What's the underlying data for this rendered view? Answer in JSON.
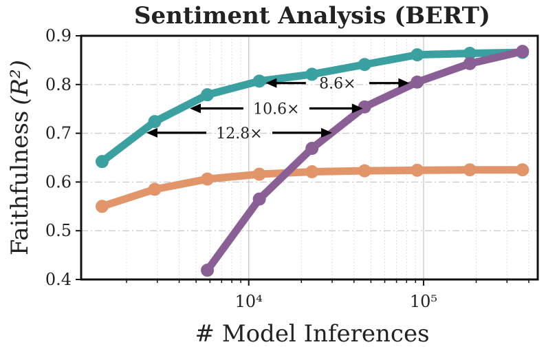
{
  "chart_data": {
    "type": "line",
    "title": "Sentiment Analysis (BERT)",
    "xlabel": "# Model Inferences",
    "ylabel": "Faithfulness",
    "ylabel_math": "(R²)",
    "xscale": "log",
    "xlim": [
      1100,
      450000
    ],
    "ylim": [
      0.4,
      0.9
    ],
    "yticks": [
      0.4,
      0.5,
      0.6,
      0.7,
      0.8,
      0.9
    ],
    "ytick_labels": [
      "0.4",
      "0.5",
      "0.6",
      "0.7",
      "0.8",
      "0.9"
    ],
    "xticks": [
      10000,
      100000
    ],
    "xtick_labels": [
      "10⁴",
      "10⁵"
    ],
    "grid": true,
    "series": [
      {
        "name": "teal",
        "color": "#3aa0a0",
        "x": [
          1450,
          2900,
          5800,
          11500,
          23000,
          46000,
          92000,
          184000,
          368000
        ],
        "y": [
          0.642,
          0.724,
          0.779,
          0.807,
          0.821,
          0.841,
          0.861,
          0.864,
          0.866
        ]
      },
      {
        "name": "orange",
        "color": "#e3956a",
        "x": [
          1450,
          2900,
          5800,
          11500,
          23000,
          46000,
          92000,
          184000,
          368000
        ],
        "y": [
          0.55,
          0.585,
          0.606,
          0.616,
          0.621,
          0.623,
          0.624,
          0.625,
          0.625
        ]
      },
      {
        "name": "purple",
        "color": "#8a5f96",
        "x": [
          5800,
          11500,
          23000,
          46000,
          92000,
          184000,
          368000
        ],
        "y": [
          0.419,
          0.565,
          0.669,
          0.754,
          0.805,
          0.843,
          0.868
        ]
      }
    ],
    "annotations": [
      {
        "text": "8.6×",
        "y": 0.803,
        "x_start": 12500,
        "x_end": 83000
      },
      {
        "text": "10.6×",
        "y": 0.751,
        "x_start": 4600,
        "x_end": 45000
      },
      {
        "text": "12.8×",
        "y": 0.701,
        "x_start": 2600,
        "x_end": 30000
      }
    ]
  }
}
